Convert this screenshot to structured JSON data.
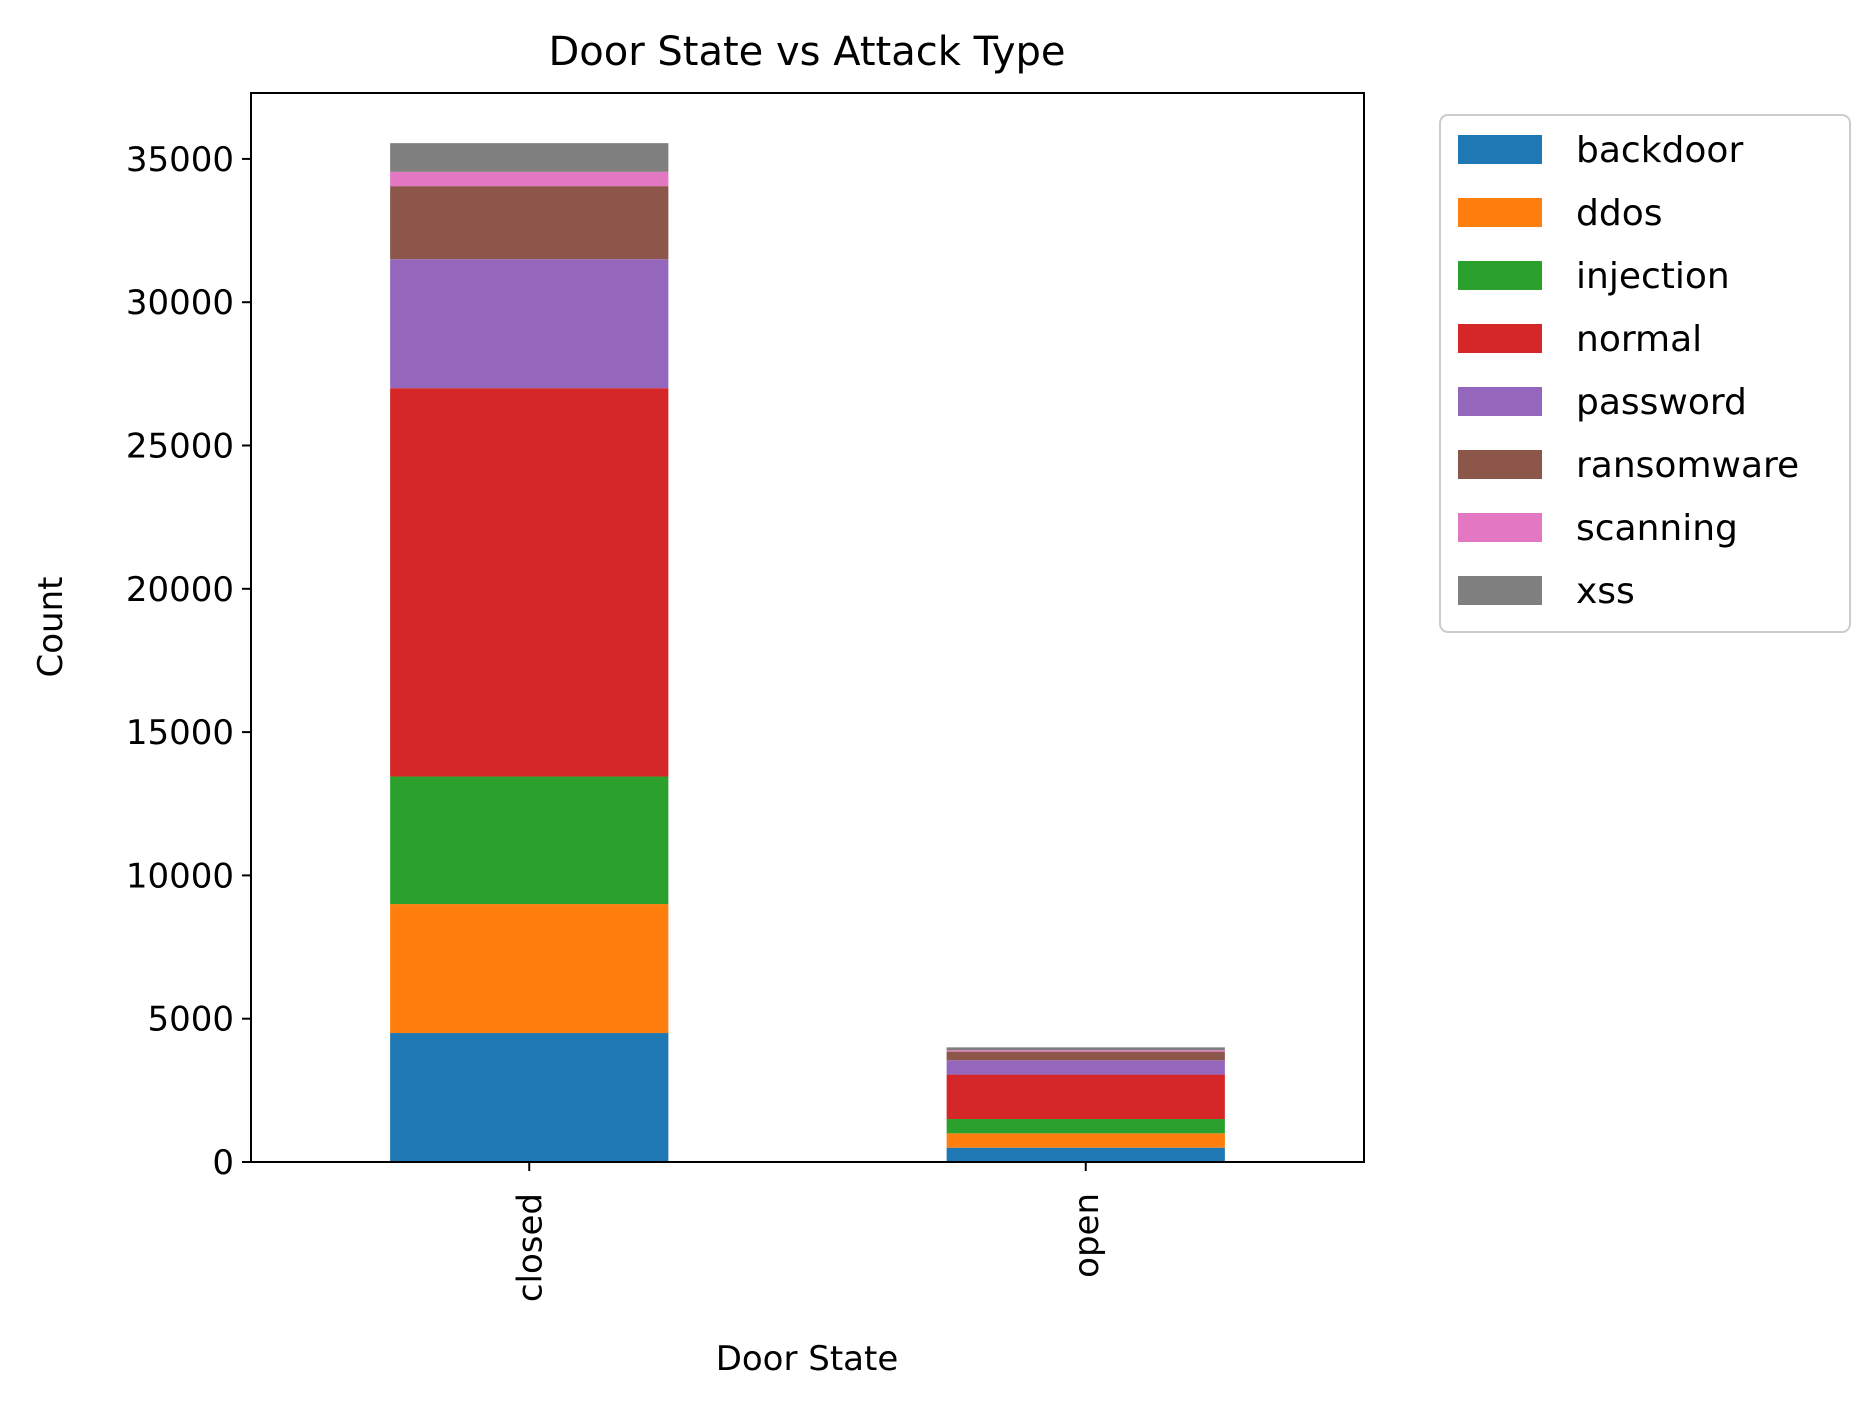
{
  "chart_data": {
    "type": "bar",
    "stacked": true,
    "title": "Door State vs Attack Type",
    "xlabel": "Door State",
    "ylabel": "Count",
    "categories": [
      "closed",
      "open"
    ],
    "ylim": [
      0,
      37300
    ],
    "yticks": [
      0,
      5000,
      10000,
      15000,
      20000,
      25000,
      30000,
      35000
    ],
    "grid": false,
    "legend_position": "outside-right-top",
    "series": [
      {
        "name": "backdoor",
        "color": "#1f77b4",
        "values": [
          4500,
          500
        ]
      },
      {
        "name": "ddos",
        "color": "#ff7f0e",
        "values": [
          4500,
          500
        ]
      },
      {
        "name": "injection",
        "color": "#2ca02c",
        "values": [
          4450,
          500
        ]
      },
      {
        "name": "normal",
        "color": "#d62728",
        "values": [
          13550,
          1550
        ]
      },
      {
        "name": "password",
        "color": "#9467bd",
        "values": [
          4500,
          500
        ]
      },
      {
        "name": "ransomware",
        "color": "#8c564b",
        "values": [
          2550,
          300
        ]
      },
      {
        "name": "scanning",
        "color": "#e377c2",
        "values": [
          500,
          50
        ]
      },
      {
        "name": "xss",
        "color": "#7f7f7f",
        "values": [
          1000,
          100
        ]
      }
    ]
  }
}
